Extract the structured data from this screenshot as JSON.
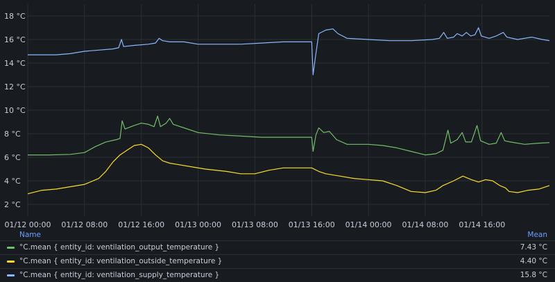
{
  "chart_data": {
    "type": "line",
    "y_unit": "°C",
    "y_ticks": [
      "18 °C",
      "16 °C",
      "14 °C",
      "12 °C",
      "10 °C",
      "8 °C",
      "6 °C",
      "4 °C",
      "2 °C"
    ],
    "y_tick_values": [
      18,
      16,
      14,
      12,
      10,
      8,
      6,
      4,
      2
    ],
    "ylim": [
      1,
      19
    ],
    "x_ticks": [
      "01/12 00:00",
      "01/12 08:00",
      "01/12 16:00",
      "01/13 00:00",
      "01/13 08:00",
      "01/13 16:00",
      "01/14 00:00",
      "01/14 08:00",
      "01/14 16:00"
    ],
    "x_tick_hours": [
      0,
      8,
      16,
      24,
      32,
      40,
      48,
      56,
      64
    ],
    "xlim_hours": [
      0,
      73.5
    ],
    "grid": true,
    "series": [
      {
        "name": "°C.mean { entity_id: ventilation_output_temperature }",
        "color": "#73bf69",
        "mean": "7.43 °C",
        "points": [
          [
            0,
            6.2
          ],
          [
            3,
            6.2
          ],
          [
            6,
            6.25
          ],
          [
            8,
            6.4
          ],
          [
            9.5,
            6.9
          ],
          [
            11,
            7.3
          ],
          [
            12.5,
            7.5
          ],
          [
            13,
            7.6
          ],
          [
            13.3,
            9.1
          ],
          [
            13.7,
            8.4
          ],
          [
            15,
            8.7
          ],
          [
            16,
            8.9
          ],
          [
            17,
            8.8
          ],
          [
            17.8,
            8.6
          ],
          [
            18.3,
            9.5
          ],
          [
            18.7,
            8.6
          ],
          [
            19.5,
            8.9
          ],
          [
            20,
            9.3
          ],
          [
            20.5,
            8.8
          ],
          [
            22,
            8.5
          ],
          [
            24,
            8.1
          ],
          [
            27,
            7.9
          ],
          [
            30,
            7.8
          ],
          [
            33,
            7.7
          ],
          [
            36,
            7.7
          ],
          [
            40,
            7.7
          ],
          [
            40.2,
            6.5
          ],
          [
            40.6,
            7.9
          ],
          [
            41,
            8.5
          ],
          [
            41.7,
            8.1
          ],
          [
            42.5,
            8.2
          ],
          [
            43.5,
            7.5
          ],
          [
            45,
            7.1
          ],
          [
            48,
            7.1
          ],
          [
            50,
            7.0
          ],
          [
            52,
            6.8
          ],
          [
            54,
            6.5
          ],
          [
            56,
            6.2
          ],
          [
            57.5,
            6.3
          ],
          [
            58.5,
            6.6
          ],
          [
            59.2,
            8.3
          ],
          [
            59.6,
            7.2
          ],
          [
            60.5,
            7.5
          ],
          [
            61.2,
            8.1
          ],
          [
            61.7,
            7.3
          ],
          [
            62.5,
            7.3
          ],
          [
            63.3,
            8.7
          ],
          [
            63.8,
            7.4
          ],
          [
            65,
            7.1
          ],
          [
            66,
            7.2
          ],
          [
            66.7,
            8.1
          ],
          [
            67.2,
            7.4
          ],
          [
            68,
            7.3
          ],
          [
            70,
            7.1
          ],
          [
            72,
            7.2
          ],
          [
            73.5,
            7.25
          ]
        ]
      },
      {
        "name": "°C.mean { entity_id: ventilation_outside_temperature }",
        "color": "#fade2a",
        "mean": "4.40 °C",
        "points": [
          [
            0,
            2.9
          ],
          [
            2,
            3.2
          ],
          [
            4,
            3.3
          ],
          [
            6,
            3.5
          ],
          [
            8,
            3.7
          ],
          [
            10,
            4.2
          ],
          [
            11,
            4.8
          ],
          [
            12,
            5.6
          ],
          [
            13,
            6.2
          ],
          [
            14,
            6.6
          ],
          [
            15,
            7.0
          ],
          [
            16,
            7.1
          ],
          [
            17,
            6.8
          ],
          [
            18,
            6.2
          ],
          [
            19,
            5.7
          ],
          [
            20,
            5.5
          ],
          [
            21,
            5.4
          ],
          [
            23,
            5.2
          ],
          [
            25,
            5.0
          ],
          [
            28,
            4.8
          ],
          [
            30,
            4.6
          ],
          [
            32,
            4.6
          ],
          [
            34,
            4.9
          ],
          [
            36,
            5.1
          ],
          [
            38,
            5.1
          ],
          [
            40,
            5.1
          ],
          [
            41,
            4.8
          ],
          [
            42,
            4.6
          ],
          [
            44,
            4.4
          ],
          [
            46,
            4.2
          ],
          [
            48,
            4.1
          ],
          [
            50,
            4.0
          ],
          [
            52,
            3.6
          ],
          [
            54,
            3.1
          ],
          [
            56,
            3.0
          ],
          [
            57.5,
            3.2
          ],
          [
            58.5,
            3.6
          ],
          [
            60,
            4.0
          ],
          [
            61.3,
            4.4
          ],
          [
            62.5,
            4.1
          ],
          [
            63.5,
            3.9
          ],
          [
            64.5,
            4.1
          ],
          [
            65.5,
            4.0
          ],
          [
            66.5,
            3.6
          ],
          [
            67.3,
            3.4
          ],
          [
            67.8,
            3.1
          ],
          [
            69,
            3.0
          ],
          [
            70.5,
            3.2
          ],
          [
            72,
            3.3
          ],
          [
            73.5,
            3.6
          ]
        ]
      },
      {
        "name": "°C.mean { entity_id: ventilation_supply_temperature }",
        "color": "#8ab8ff",
        "mean": "15.8 °C",
        "points": [
          [
            0,
            14.7
          ],
          [
            2,
            14.7
          ],
          [
            4,
            14.7
          ],
          [
            6,
            14.8
          ],
          [
            8,
            15.0
          ],
          [
            10,
            15.1
          ],
          [
            12,
            15.2
          ],
          [
            12.8,
            15.3
          ],
          [
            13.2,
            16.0
          ],
          [
            13.5,
            15.4
          ],
          [
            15,
            15.5
          ],
          [
            17,
            15.6
          ],
          [
            18,
            15.7
          ],
          [
            18.5,
            16.1
          ],
          [
            19,
            15.9
          ],
          [
            20,
            15.8
          ],
          [
            22,
            15.8
          ],
          [
            24,
            15.6
          ],
          [
            27,
            15.6
          ],
          [
            30,
            15.6
          ],
          [
            33,
            15.7
          ],
          [
            36,
            15.8
          ],
          [
            39,
            15.8
          ],
          [
            40,
            15.8
          ],
          [
            40.2,
            13.0
          ],
          [
            40.5,
            14.4
          ],
          [
            41,
            16.5
          ],
          [
            42,
            16.8
          ],
          [
            43,
            16.9
          ],
          [
            43.7,
            16.5
          ],
          [
            45,
            16.1
          ],
          [
            48,
            16.0
          ],
          [
            51,
            15.9
          ],
          [
            54,
            15.9
          ],
          [
            57,
            16.0
          ],
          [
            58,
            16.1
          ],
          [
            58.6,
            16.6
          ],
          [
            59.1,
            16.1
          ],
          [
            60,
            16.2
          ],
          [
            60.5,
            16.5
          ],
          [
            61.2,
            16.3
          ],
          [
            61.8,
            16.6
          ],
          [
            62.4,
            16.3
          ],
          [
            63,
            16.4
          ],
          [
            63.5,
            17.0
          ],
          [
            63.9,
            16.3
          ],
          [
            65,
            16.1
          ],
          [
            66,
            16.3
          ],
          [
            67,
            16.6
          ],
          [
            67.5,
            16.2
          ],
          [
            69,
            16.0
          ],
          [
            71,
            16.2
          ],
          [
            72.5,
            16.0
          ],
          [
            73.5,
            15.9
          ]
        ]
      }
    ]
  },
  "legend": {
    "header_name": "Name",
    "header_mean": "Mean"
  }
}
